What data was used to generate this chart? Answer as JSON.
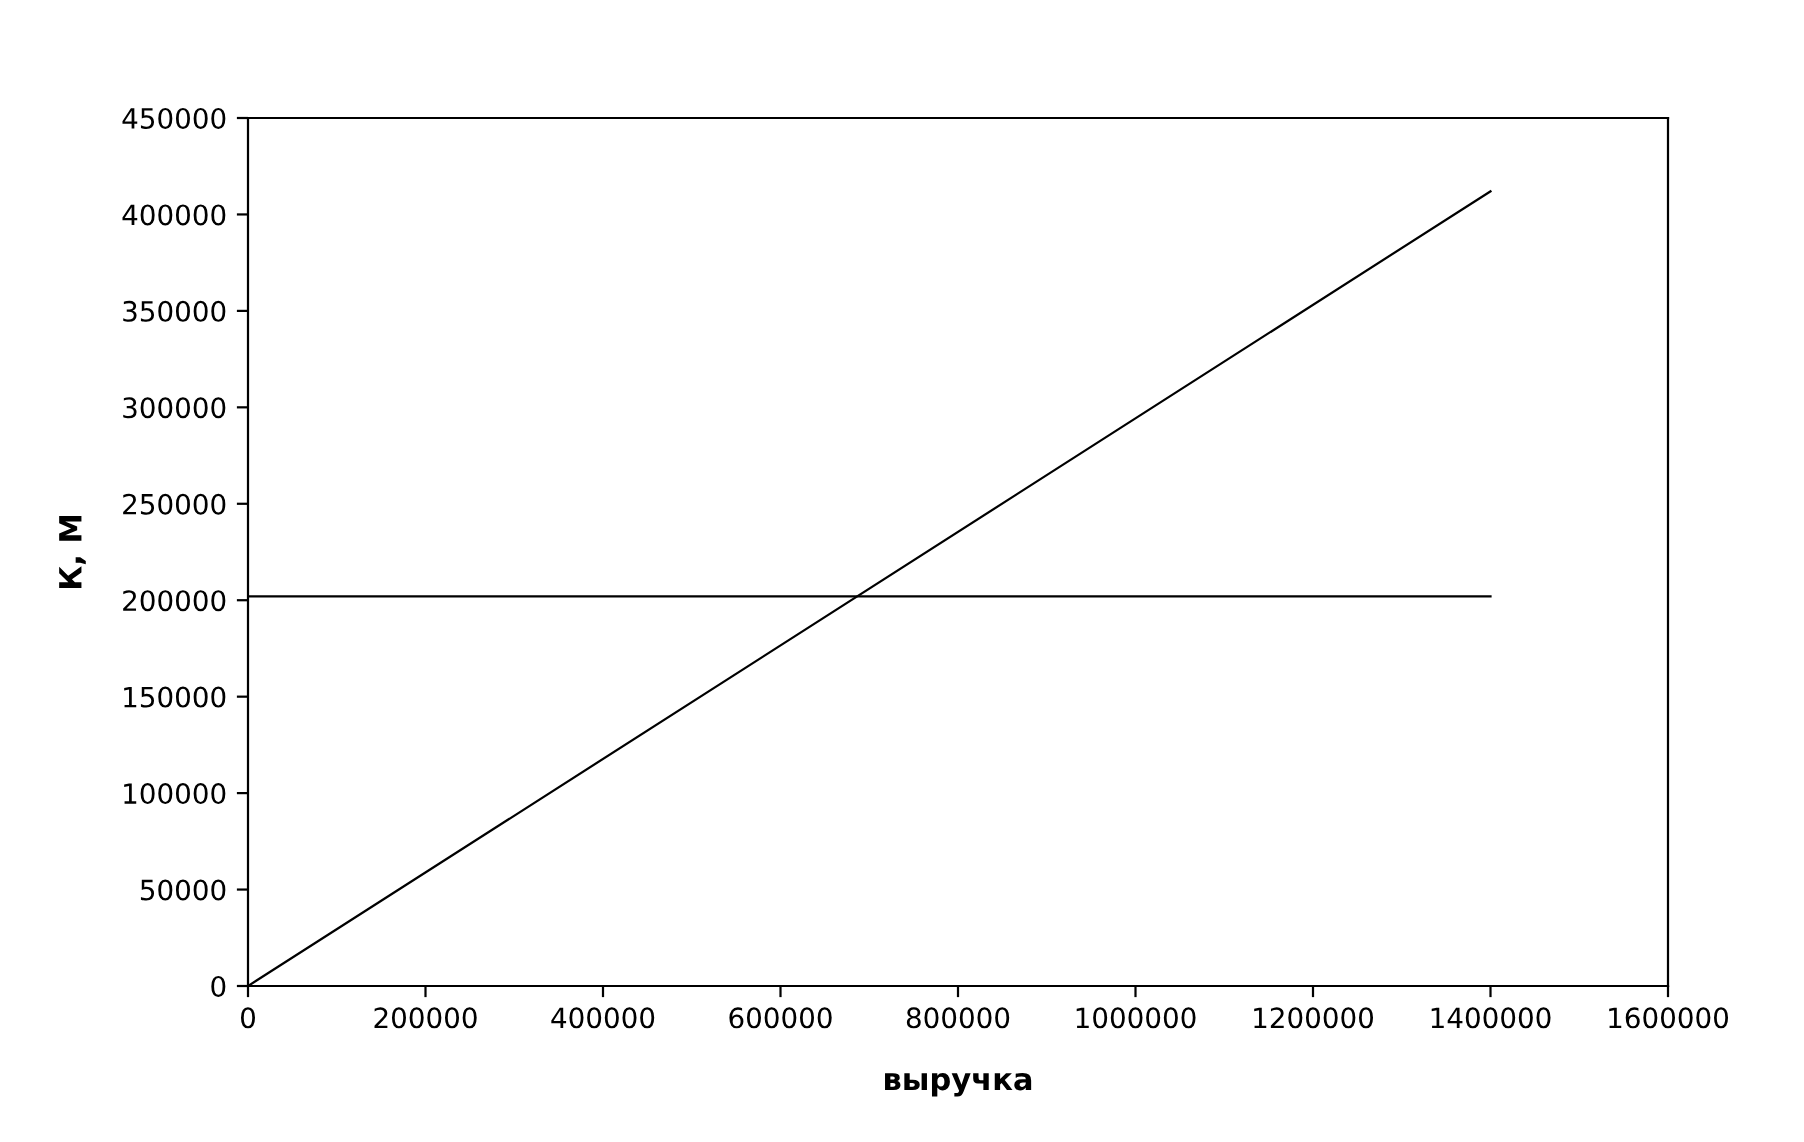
{
  "chart_data": {
    "type": "line",
    "xlabel": "выручка",
    "ylabel": "К, М",
    "series": [
      {
        "color": "#000000",
        "values": [
          0,
          412000
        ]
      },
      {
        "color": "#000000",
        "values": [
          202000,
          202000
        ]
      }
    ],
    "xlim": [
      0,
      1600000
    ],
    "xticks": [
      0,
      200000,
      400000,
      600000,
      800000,
      1000000,
      1200000,
      1400000,
      1600000
    ],
    "ylim": [
      0,
      450000
    ],
    "yticks": [
      0,
      50000,
      100000,
      150000,
      200000,
      250000,
      300000,
      350000,
      400000,
      450000
    ],
    "x": [
      0,
      1400000
    ],
    "marker": "none",
    "line_style": "solid"
  }
}
